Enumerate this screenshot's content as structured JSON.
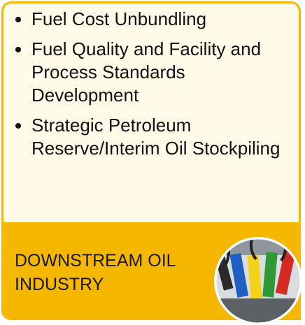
{
  "bullets": [
    "Fuel Cost Unbundling",
    "Fuel Quality and Facility and Process Standards Development",
    "Strategic Petroleum Reserve/Interim Oil Stockpiling"
  ],
  "band_title": "DOWNSTREAM OIL INDUSTRY"
}
